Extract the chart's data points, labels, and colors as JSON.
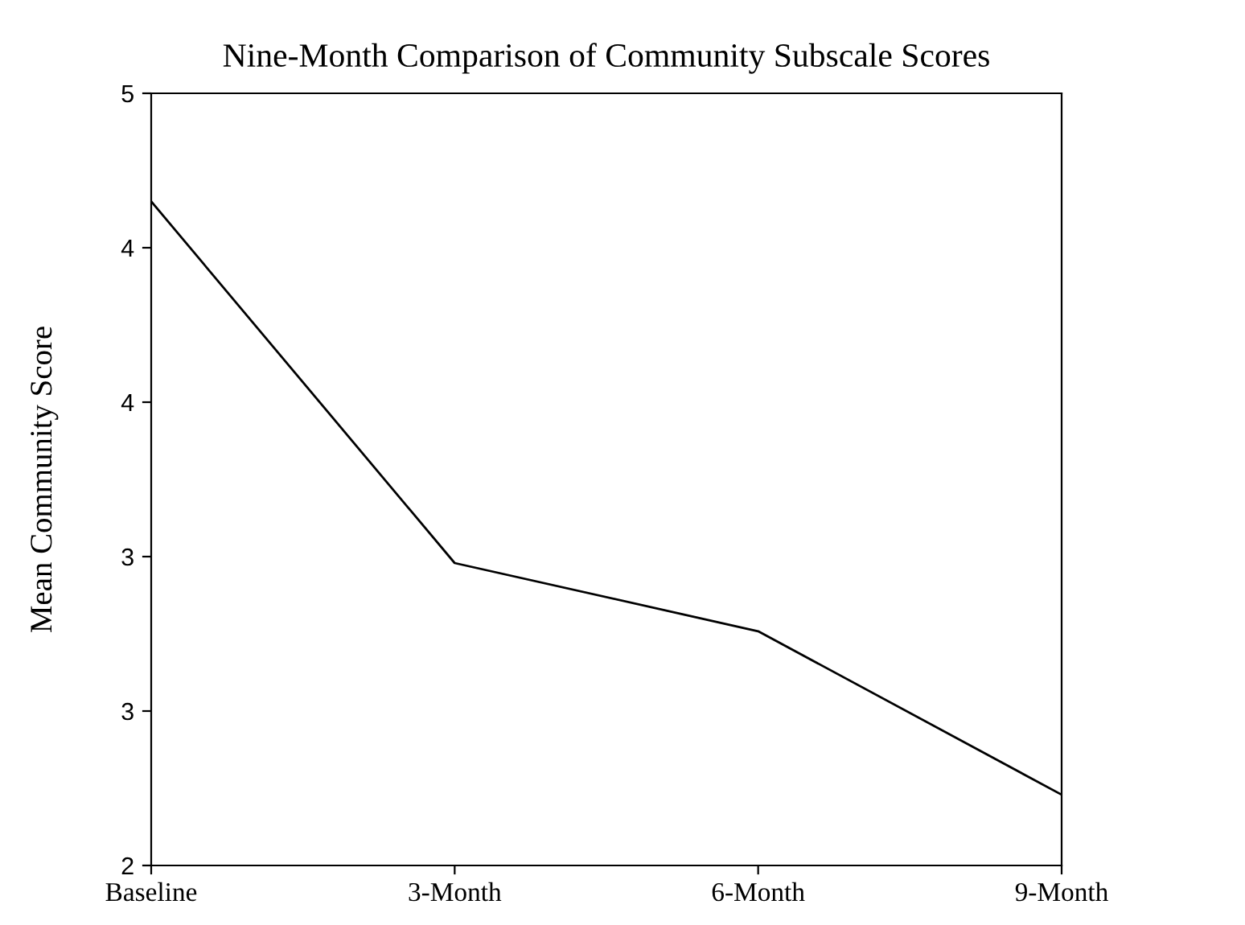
{
  "chart_data": {
    "type": "line",
    "title": "Nine-Month Comparison of Community Subscale Scores",
    "ylabel": "Mean Community Score",
    "categories": [
      "Baseline",
      "3-Month",
      "6-Month",
      "9-Month"
    ],
    "series": [
      {
        "color": "#000000",
        "values": [
          4.58,
          3.175,
          2.91,
          2.275
        ]
      }
    ],
    "ylim": [
      2,
      5
    ],
    "yticks": [
      {
        "value": 2,
        "label": "2"
      },
      {
        "value": 2.6,
        "label": "3"
      },
      {
        "value": 3.2,
        "label": "3"
      },
      {
        "value": 3.8,
        "label": "4"
      },
      {
        "value": 4.4,
        "label": "4"
      },
      {
        "value": 5,
        "label": "5"
      }
    ],
    "grid": false,
    "legend": false,
    "marker": "none",
    "line_style": "solid"
  }
}
